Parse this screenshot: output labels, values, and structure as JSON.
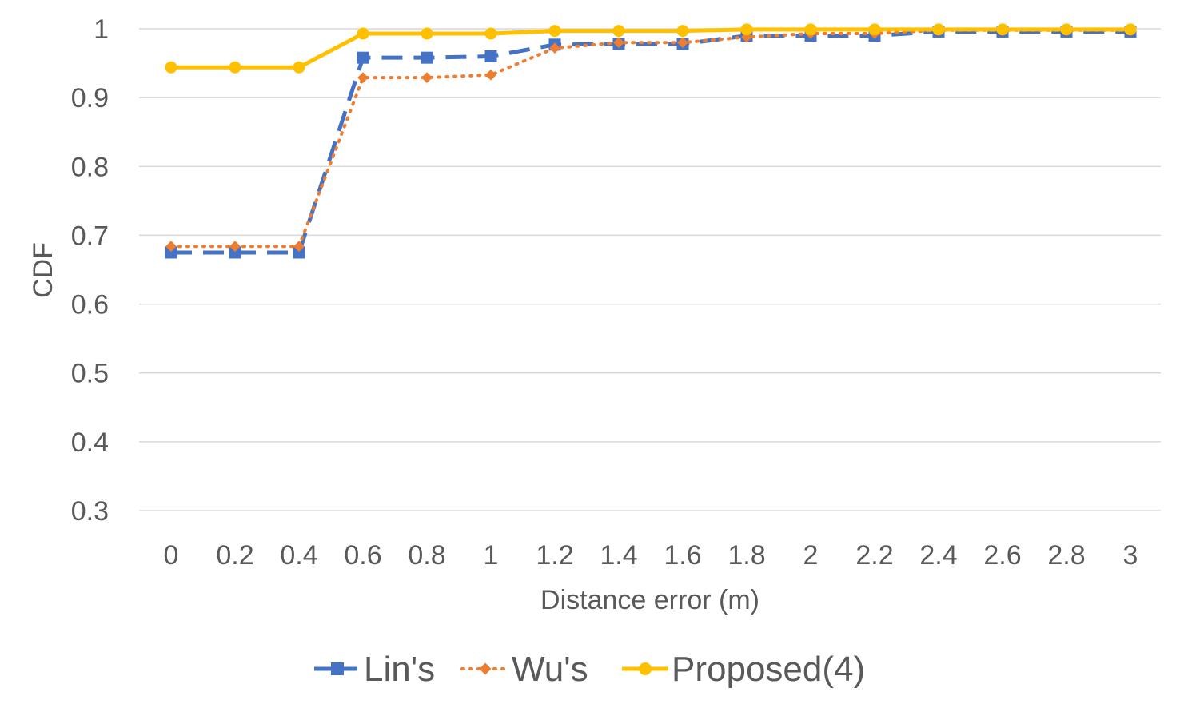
{
  "chart_data": {
    "type": "line",
    "title": "",
    "xlabel": "Distance error (m)",
    "ylabel": "CDF",
    "categories": [
      "0",
      "0.2",
      "0.4",
      "0.6",
      "0.8",
      "1",
      "1.2",
      "1.4",
      "1.6",
      "1.8",
      "2",
      "2.2",
      "2.4",
      "2.6",
      "2.8",
      "3"
    ],
    "y_ticks": [
      "0.3",
      "0.4",
      "0.5",
      "0.6",
      "0.7",
      "0.8",
      "0.9",
      "1"
    ],
    "ylim": [
      0.3,
      1.0
    ],
    "grid": true,
    "legend_position": "bottom",
    "series": [
      {
        "name": "Lin's",
        "color": "#4472c4",
        "line_style": "dashed",
        "marker": "square",
        "values": [
          0.675,
          0.675,
          0.675,
          0.958,
          0.958,
          0.96,
          0.977,
          0.978,
          0.978,
          0.99,
          0.99,
          0.99,
          0.996,
          0.996,
          0.996,
          0.996
        ]
      },
      {
        "name": "Wu's",
        "color": "#ed7d31",
        "line_style": "dotted",
        "marker": "diamond",
        "values": [
          0.684,
          0.684,
          0.684,
          0.929,
          0.929,
          0.933,
          0.972,
          0.98,
          0.98,
          0.988,
          0.993,
          0.993,
          0.998,
          0.998,
          0.998,
          0.998
        ]
      },
      {
        "name": "Proposed(4)",
        "color": "#ffc000",
        "line_style": "solid",
        "marker": "circle",
        "values": [
          0.944,
          0.944,
          0.944,
          0.993,
          0.993,
          0.993,
          0.997,
          0.997,
          0.997,
          0.999,
          0.999,
          0.999,
          0.999,
          0.999,
          0.999,
          0.999
        ]
      }
    ]
  }
}
